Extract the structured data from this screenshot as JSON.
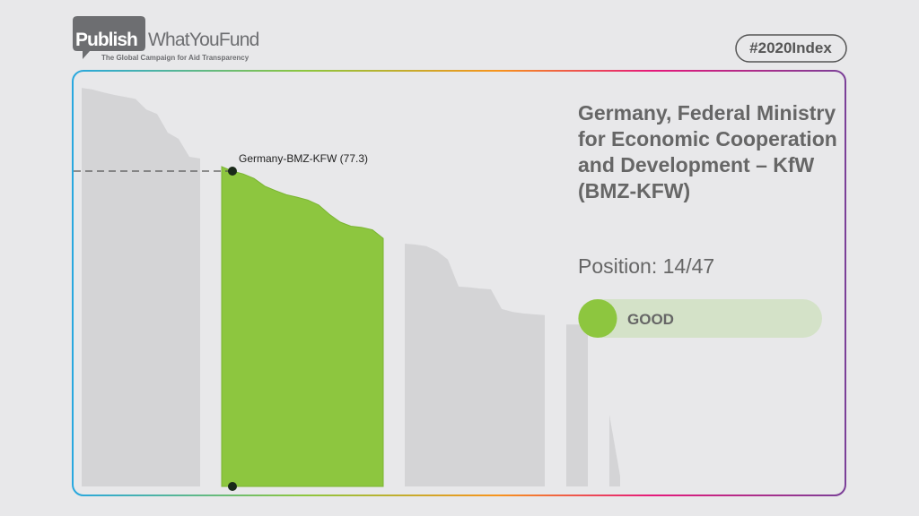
{
  "header": {
    "logo_left": "Publish",
    "logo_right": "WhatYouFund",
    "tagline": "The Global Campaign for Aid Transparency",
    "tag": "#2020Index"
  },
  "panel": {
    "title": "Germany, Federal Ministry for Economic Cooperation and Development – KfW (BMZ-KFW)",
    "position": "Position: 14/47",
    "rating": "GOOD"
  },
  "chart_data": {
    "type": "area",
    "values": [
      97.7,
      97.3,
      96.6,
      96.0,
      95.5,
      95.0,
      92.4,
      91.3,
      86.7,
      85.2,
      80.8,
      80.4,
      null,
      78.4,
      77.3,
      76.6,
      75.5,
      73.6,
      72.5,
      71.5,
      70.9,
      70.2,
      69.0,
      66.7,
      64.8,
      63.8,
      63.5,
      62.9,
      60.8,
      null,
      59.5,
      59.3,
      58.9,
      57.7,
      55.6,
      49.0,
      48.8,
      48.5,
      48.3,
      43.5,
      42.8,
      42.4,
      42.2,
      42.0,
      null,
      39.7,
      39.7,
      39.7,
      null,
      17.6,
      2.5
    ],
    "ylim": [
      0,
      100
    ],
    "color": "#d4d4d6",
    "highlight_color": "#8dc63f",
    "highlight_index": 14,
    "annotation": "Germany-BMZ-KFW (77.3)"
  }
}
